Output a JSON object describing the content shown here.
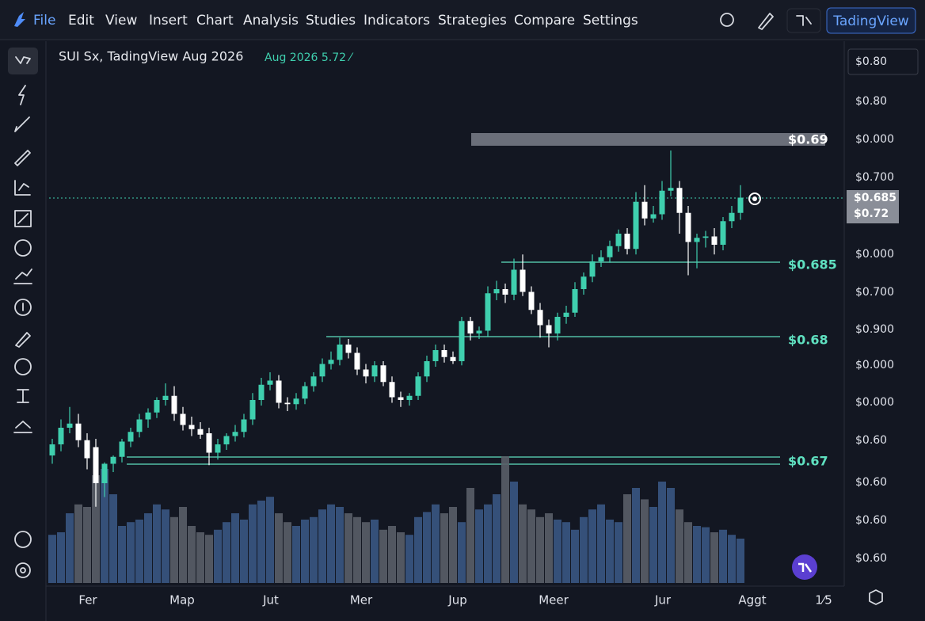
{
  "menu": {
    "items": [
      "File",
      "Edit",
      "View",
      "Insert",
      "Chart",
      "Analysis",
      "Studies",
      "Indicators",
      "Strategies",
      "Compare",
      "Settings"
    ],
    "button": "TadingView"
  },
  "chart": {
    "type": "candlestick",
    "symbol": "SUI  Sx, TadingView Aug 2026",
    "info": "Aug 2026 5.72 ⁄",
    "ylim": [
      0.66,
      0.7
    ],
    "up_color": "#3fcfae",
    "down_color": "#ffffff",
    "volume_up_color": "#3a5683",
    "volume_down_color": "#5a5e68",
    "candles": {
      "open": [
        0.67,
        0.6708,
        0.672,
        0.6723,
        0.6711,
        0.6706,
        0.668,
        0.6694,
        0.6699,
        0.671,
        0.6717,
        0.6726,
        0.6731,
        0.674,
        0.6743,
        0.673,
        0.6722,
        0.6719,
        0.6716,
        0.6702,
        0.6708,
        0.6714,
        0.6717,
        0.6726,
        0.674,
        0.6751,
        0.6754,
        0.6738,
        0.6737,
        0.6741,
        0.675,
        0.6757,
        0.6766,
        0.6769,
        0.678,
        0.6774,
        0.6762,
        0.6757,
        0.6765,
        0.6753,
        0.6742,
        0.674,
        0.6743,
        0.6757,
        0.6768,
        0.6776,
        0.6771,
        0.6768,
        0.6797,
        0.6788,
        0.679,
        0.6817,
        0.682,
        0.6816,
        0.6834,
        0.6818,
        0.6805,
        0.6794,
        0.6788,
        0.68,
        0.6803,
        0.682,
        0.6829,
        0.684,
        0.6843,
        0.6851,
        0.686,
        0.6849,
        0.6883,
        0.6871,
        0.6874,
        0.6891,
        0.6893,
        0.6875,
        0.6854,
        0.6857,
        0.6858,
        0.6852,
        0.6869,
        0.6875
      ],
      "high": [
        0.6712,
        0.6726,
        0.6735,
        0.673,
        0.6716,
        0.6712,
        0.6695,
        0.67,
        0.6712,
        0.672,
        0.673,
        0.6734,
        0.6742,
        0.6752,
        0.675,
        0.6735,
        0.6728,
        0.6724,
        0.672,
        0.6712,
        0.6716,
        0.6722,
        0.673,
        0.6745,
        0.6756,
        0.676,
        0.6758,
        0.6742,
        0.6745,
        0.6753,
        0.676,
        0.677,
        0.6775,
        0.6785,
        0.6784,
        0.6778,
        0.6766,
        0.6768,
        0.6768,
        0.6757,
        0.6746,
        0.6745,
        0.676,
        0.6772,
        0.678,
        0.678,
        0.6775,
        0.68,
        0.68,
        0.6793,
        0.6822,
        0.6826,
        0.6824,
        0.6842,
        0.6845,
        0.6822,
        0.681,
        0.6798,
        0.6803,
        0.6808,
        0.6825,
        0.6832,
        0.6845,
        0.6848,
        0.6855,
        0.6863,
        0.6864,
        0.689,
        0.6895,
        0.688,
        0.6898,
        0.692,
        0.6898,
        0.688,
        0.686,
        0.6862,
        0.6864,
        0.6872,
        0.688,
        0.6895
      ],
      "low": [
        0.6694,
        0.6703,
        0.6716,
        0.6706,
        0.669,
        0.6663,
        0.667,
        0.6688,
        0.6695,
        0.6706,
        0.6713,
        0.672,
        0.6727,
        0.6736,
        0.6725,
        0.6718,
        0.6714,
        0.6712,
        0.6693,
        0.6697,
        0.6704,
        0.671,
        0.6713,
        0.6722,
        0.6736,
        0.6747,
        0.6734,
        0.6732,
        0.6733,
        0.6737,
        0.6746,
        0.6753,
        0.6762,
        0.6765,
        0.677,
        0.6758,
        0.6752,
        0.6753,
        0.675,
        0.6738,
        0.6735,
        0.6736,
        0.674,
        0.6753,
        0.6764,
        0.6767,
        0.6766,
        0.6765,
        0.6783,
        0.6784,
        0.6786,
        0.6812,
        0.681,
        0.6812,
        0.6815,
        0.6802,
        0.6785,
        0.6778,
        0.6783,
        0.6795,
        0.68,
        0.6816,
        0.6825,
        0.6836,
        0.6839,
        0.6847,
        0.6845,
        0.6845,
        0.6866,
        0.6868,
        0.687,
        0.6887,
        0.686,
        0.683,
        0.6835,
        0.685,
        0.6845,
        0.6848,
        0.6864,
        0.687
      ],
      "close": [
        0.6708,
        0.672,
        0.6723,
        0.6711,
        0.6698,
        0.668,
        0.6694,
        0.6699,
        0.671,
        0.6717,
        0.6726,
        0.6731,
        0.674,
        0.6743,
        0.673,
        0.6722,
        0.6719,
        0.6715,
        0.6702,
        0.6708,
        0.6714,
        0.6717,
        0.6726,
        0.674,
        0.6751,
        0.6754,
        0.6738,
        0.6737,
        0.6741,
        0.675,
        0.6757,
        0.6766,
        0.6769,
        0.678,
        0.6774,
        0.6762,
        0.6757,
        0.6765,
        0.6753,
        0.6742,
        0.674,
        0.6743,
        0.6757,
        0.6768,
        0.6776,
        0.6771,
        0.6768,
        0.6797,
        0.6788,
        0.679,
        0.6817,
        0.682,
        0.6816,
        0.6834,
        0.6818,
        0.6805,
        0.6794,
        0.6788,
        0.68,
        0.6803,
        0.682,
        0.6829,
        0.684,
        0.6843,
        0.6851,
        0.686,
        0.6849,
        0.6883,
        0.6871,
        0.6874,
        0.6891,
        0.6893,
        0.6875,
        0.6854,
        0.6857,
        0.6858,
        0.6852,
        0.6869,
        0.6875,
        0.6886
      ]
    },
    "volume": [
      38,
      40,
      55,
      62,
      60,
      85,
      90,
      70,
      45,
      48,
      50,
      55,
      62,
      58,
      52,
      60,
      45,
      40,
      38,
      42,
      48,
      55,
      50,
      62,
      65,
      68,
      55,
      48,
      45,
      50,
      52,
      58,
      62,
      60,
      55,
      52,
      48,
      50,
      42,
      45,
      40,
      38,
      52,
      56,
      62,
      55,
      60,
      48,
      75,
      58,
      62,
      70,
      100,
      80,
      62,
      58,
      52,
      55,
      50,
      48,
      42,
      52,
      58,
      62,
      50,
      48,
      70,
      75,
      66,
      60,
      80,
      75,
      58,
      48,
      45,
      44,
      40,
      42,
      38,
      35
    ],
    "volume_ylim": [
      0,
      100
    ],
    "price_scale": [
      "$0.80",
      "$0.80",
      "$0.000",
      "$0.700",
      "$0.000",
      "$0.700",
      "$0.900",
      "$0.000",
      "$0.000",
      "$0.60",
      "$0.60",
      "$0.60",
      "$0.60"
    ],
    "current_price": [
      "$0.685",
      "$0.72"
    ],
    "levels": [
      "$0.69",
      "$0.685",
      "$0.68",
      "$0.67"
    ],
    "x_labels": [
      "Fer",
      "Map",
      "Jut",
      "Mer",
      "Jup",
      "Meer",
      "Jur",
      "Aggt",
      "1⁄5"
    ]
  }
}
